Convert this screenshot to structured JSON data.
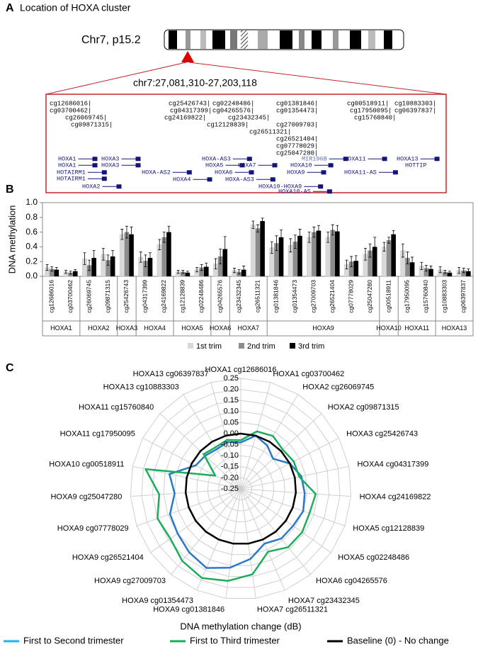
{
  "panel_a": {
    "label": "A",
    "title": "Location of HOXA cluster",
    "chromosome": "Chr7, p15.2",
    "region": "chr7:27,081,310-27,203,118",
    "probes": [
      "cg12686016|",
      "cg03700462|",
      "cg26069745|",
      "cg09871315|",
      "cg25426743|",
      "cg04317399|",
      "cg24169822|",
      "cg02248486|",
      "cg04265576|",
      "cg23432345|",
      "cg12128839|",
      "cg26511321|",
      "cg01381846|",
      "cg01354473|",
      "cg27009703|",
      "cg26521404|",
      "cg07778029|",
      "cg25047280|",
      "cg00518911|",
      "cg17950095|",
      "cg15760840|",
      "cg10883303|",
      "cg06397837|"
    ],
    "genes": [
      "HOXA1",
      "HOXA1",
      "HOTAIRM1",
      "HOTAIRM1",
      "HOXA2",
      "HOXA3",
      "HOXA3",
      "HOXA-AS2",
      "HOXA4",
      "HOXA-AS3",
      "HOXA5",
      "HOXA6",
      "HOXA-AS3",
      "HOXA7",
      "MIR196B",
      "HOXA10",
      "HOXA9",
      "HOXA10-HOXA9",
      "HOXA10-AS",
      "HOXA11",
      "HOXA11-AS",
      "HOXA13",
      "HOTTIP"
    ]
  },
  "chart_data": [
    {
      "type": "bar",
      "panel": "B",
      "ylabel": "DNA methylation",
      "categories": [
        "cg12686016",
        "cg03700462",
        "cg26069745",
        "cg09871315",
        "cg25426743",
        "cg04317399",
        "cg24169822",
        "cg12128839",
        "cg02248486",
        "cg04265576",
        "cg23432345",
        "cg26511321",
        "cg01381846",
        "cg01354473",
        "cg27009703",
        "cg26521404",
        "cg07778029",
        "cg25047280",
        "cg00518911",
        "cg17950095",
        "cg15760840",
        "cg10883303",
        "cg06397837"
      ],
      "genes": [
        "HOXA1",
        "HOXA1",
        "HOXA2",
        "HOXA2",
        "HOXA3",
        "HOXA4",
        "HOXA4",
        "HOXA5",
        "HOXA5",
        "HOXA6",
        "HOXA7",
        "HOXA7",
        "HOXA9",
        "HOXA9",
        "HOXA9",
        "HOXA9",
        "HOXA9",
        "HOXA9",
        "HOXA10",
        "HOXA11",
        "HOXA11",
        "HOXA13",
        "HOXA13"
      ],
      "ylim": [
        0,
        1
      ],
      "yticks": [
        {
          "value": 0,
          "label": "0.0"
        },
        0.2,
        0.4,
        0.6,
        0.8,
        {
          "value": 1,
          "label": "1.0"
        }
      ],
      "legend": "bottom",
      "series": [
        {
          "name": "1st trim",
          "color": "#d9d9d9",
          "values": [
            0.12,
            0.06,
            0.24,
            0.3,
            0.57,
            0.26,
            0.43,
            0.06,
            0.09,
            0.17,
            0.08,
            0.7,
            0.39,
            0.42,
            0.53,
            0.53,
            0.16,
            0.3,
            0.4,
            0.35,
            0.14,
            0.09,
            0.08
          ],
          "errors": [
            0.04,
            0.02,
            0.08,
            0.08,
            0.07,
            0.07,
            0.07,
            0.02,
            0.03,
            0.07,
            0.03,
            0.05,
            0.08,
            0.09,
            0.07,
            0.07,
            0.06,
            0.08,
            0.06,
            0.09,
            0.05,
            0.04,
            0.04
          ]
        },
        {
          "name": "2nd trim",
          "color": "#8c8c8c",
          "values": [
            0.1,
            0.05,
            0.15,
            0.22,
            0.6,
            0.21,
            0.53,
            0.06,
            0.12,
            0.27,
            0.06,
            0.65,
            0.45,
            0.47,
            0.6,
            0.63,
            0.2,
            0.35,
            0.49,
            0.25,
            0.11,
            0.06,
            0.08
          ],
          "errors": [
            0.03,
            0.02,
            0.07,
            0.07,
            0.08,
            0.08,
            0.07,
            0.02,
            0.04,
            0.1,
            0.03,
            0.05,
            0.1,
            0.09,
            0.07,
            0.07,
            0.07,
            0.09,
            0.04,
            0.08,
            0.04,
            0.02,
            0.03
          ]
        },
        {
          "name": "3rd trim",
          "color": "#000000",
          "values": [
            0.09,
            0.07,
            0.25,
            0.27,
            0.57,
            0.25,
            0.6,
            0.05,
            0.13,
            0.37,
            0.09,
            0.75,
            0.53,
            0.55,
            0.62,
            0.61,
            0.21,
            0.4,
            0.57,
            0.19,
            0.1,
            0.05,
            0.07
          ],
          "errors": [
            0.03,
            0.02,
            0.1,
            0.08,
            0.1,
            0.07,
            0.08,
            0.02,
            0.05,
            0.17,
            0.05,
            0.04,
            0.1,
            0.09,
            0.07,
            0.08,
            0.07,
            0.13,
            0.05,
            0.07,
            0.04,
            0.02,
            0.03
          ]
        }
      ]
    },
    {
      "type": "radar",
      "panel": "C",
      "xlabel": "DNA methylation change (dB)",
      "categories": [
        "HOXA1 cg12686016",
        "HOXA1 cg03700462",
        "HOXA2 cg26069745",
        "HOXA2 cg09871315",
        "HOXA3 cg25426743",
        "HOXA4 cg04317399",
        "HOXA4 cg24169822",
        "HOXA5 cg12128839",
        "HOXA5 cg02248486",
        "HOXA6 cg04265576",
        "HOXA7 cg23432345",
        "HOXA7 cg26511321",
        "HOXA9 cg01381846",
        "HOXA9 cg01354473",
        "HOXA9 cg27009703",
        "HOXA9 cg26521404",
        "HOXA9 cg07778029",
        "HOXA9 cg25047280",
        "HOXA10 cg00518911",
        "HOXA11 cg17950095",
        "HOXA11 cg15760840",
        "HOXA13 cg10883303",
        "HOXA13 cg06397837"
      ],
      "rlim": [
        -0.25,
        0.25
      ],
      "rticks": [
        -0.25,
        {
          "value": -0.2,
          "label": "-0.20"
        },
        -0.15,
        {
          "value": -0.1,
          "label": "-0.10"
        },
        -0.05,
        {
          "value": 0,
          "label": "0.00"
        },
        0.05,
        {
          "value": 0.1,
          "label": "0.10"
        },
        0.15,
        {
          "value": 0.2,
          "label": "0.20"
        },
        0.25
      ],
      "legend": "bottom",
      "series": [
        {
          "name": "First to Second trimester",
          "color": "#2a78c8",
          "values": [
            -0.04,
            0.0,
            -0.02,
            -0.05,
            0.0,
            0.03,
            0.04,
            0.05,
            0.04,
            0.04,
            0.02,
            0.07,
            0.11,
            0.14,
            0.12,
            0.1,
            0.09,
            0.05,
            0.08,
            -0.02,
            -0.03,
            -0.04,
            -0.03
          ]
        },
        {
          "name": "First to Third trimester",
          "color": "#1aae5a",
          "values": [
            -0.03,
            0.02,
            0.03,
            0.01,
            0.02,
            0.02,
            0.09,
            0.08,
            0.09,
            0.09,
            0.06,
            0.14,
            0.17,
            0.19,
            0.17,
            0.14,
            0.15,
            0.12,
            0.19,
            -0.12,
            -0.02,
            -0.03,
            -0.02
          ]
        },
        {
          "name": "Baseline (0) - No change",
          "color": "#000000",
          "values": [
            0,
            0,
            0,
            0,
            0,
            0,
            0,
            0,
            0,
            0,
            0,
            0,
            0,
            0,
            0,
            0,
            0,
            0,
            0,
            0,
            0,
            0,
            0
          ]
        }
      ]
    }
  ]
}
